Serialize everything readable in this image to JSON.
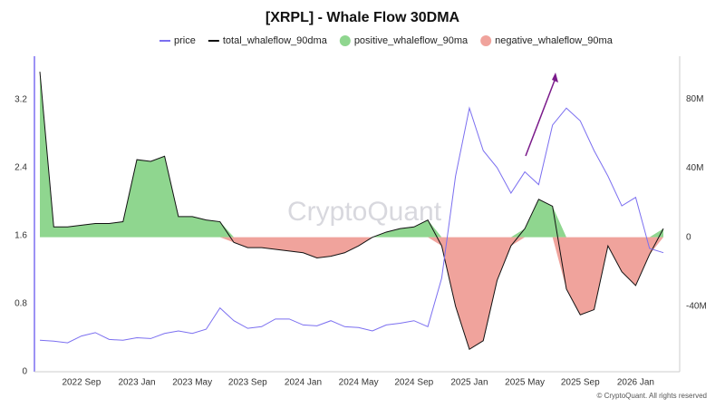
{
  "chart_data": {
    "type": "line",
    "title": "[XRPL] - Whale Flow 30DMA",
    "watermark": "CryptoQuant",
    "credit": "© CryptoQuant. All rights reserved",
    "x": [
      "2022-06",
      "2022-07",
      "2022-08",
      "2022-09",
      "2022-10",
      "2022-11",
      "2022-12",
      "2023-01",
      "2023-02",
      "2023-03",
      "2023-04",
      "2023-05",
      "2023-06",
      "2023-07",
      "2023-08",
      "2023-09",
      "2023-10",
      "2023-11",
      "2023-12",
      "2024-01",
      "2024-02",
      "2024-03",
      "2024-04",
      "2024-05",
      "2024-06",
      "2024-07",
      "2024-08",
      "2024-09",
      "2024-10",
      "2024-11",
      "2024-12",
      "2025-01",
      "2025-02",
      "2025-03",
      "2025-04",
      "2025-05",
      "2025-06",
      "2025-07",
      "2025-08",
      "2025-09",
      "2025-10",
      "2025-11",
      "2025-12",
      "2026-01",
      "2026-02",
      "2026-03"
    ],
    "series": [
      {
        "name": "price",
        "color": "#7b6ff0",
        "axis": "y",
        "style": "line",
        "values": [
          0.37,
          0.36,
          0.34,
          0.42,
          0.46,
          0.38,
          0.37,
          0.4,
          0.39,
          0.45,
          0.48,
          0.45,
          0.5,
          0.75,
          0.6,
          0.51,
          0.53,
          0.62,
          0.62,
          0.55,
          0.54,
          0.6,
          0.53,
          0.52,
          0.48,
          0.55,
          0.57,
          0.6,
          0.53,
          1.1,
          2.3,
          3.1,
          2.6,
          2.4,
          2.1,
          2.35,
          2.2,
          2.9,
          3.1,
          2.95,
          2.6,
          2.3,
          1.95,
          2.05,
          1.45,
          1.4
        ]
      },
      {
        "name": "total_whaleflow_90dma",
        "color": "#111111",
        "axis": "y2",
        "style": "line",
        "values": [
          96,
          6,
          6,
          7,
          8,
          8,
          9,
          45,
          44,
          47,
          12,
          12,
          10,
          9,
          -3,
          -6,
          -6,
          -7,
          -8,
          -9,
          -12,
          -11,
          -9,
          -5,
          0,
          3,
          5,
          6,
          10,
          -5,
          -40,
          -65,
          -60,
          -25,
          -5,
          5,
          22,
          18,
          -30,
          -45,
          -42,
          -5,
          -20,
          -28,
          -10,
          5
        ]
      },
      {
        "name": "positive_whaleflow_90ma",
        "color": "#8fd68f",
        "axis": "y2",
        "style": "area",
        "values": [
          96,
          6,
          6,
          7,
          8,
          8,
          9,
          45,
          44,
          47,
          12,
          12,
          10,
          9,
          0,
          0,
          0,
          0,
          0,
          0,
          0,
          0,
          0,
          0,
          0,
          3,
          5,
          6,
          10,
          0,
          0,
          0,
          0,
          0,
          0,
          5,
          22,
          18,
          0,
          0,
          0,
          0,
          0,
          0,
          0,
          5
        ]
      },
      {
        "name": "negative_whaleflow_90ma",
        "color": "#f0a39c",
        "axis": "y2",
        "style": "area",
        "values": [
          0,
          0,
          0,
          0,
          0,
          0,
          0,
          0,
          0,
          0,
          0,
          0,
          0,
          0,
          -3,
          -6,
          -6,
          -7,
          -8,
          -9,
          -12,
          -11,
          -9,
          -5,
          0,
          0,
          0,
          0,
          0,
          -5,
          -40,
          -65,
          -60,
          -25,
          -5,
          0,
          0,
          0,
          -30,
          -45,
          -42,
          -5,
          -20,
          -28,
          -10,
          0
        ]
      }
    ],
    "xlim": [
      "2022-06",
      "2026-03"
    ],
    "xticks": [
      {
        "value": "2022-09",
        "label": "2022 Sep"
      },
      {
        "value": "2023-01",
        "label": "2023 Jan"
      },
      {
        "value": "2023-05",
        "label": "2023 May"
      },
      {
        "value": "2023-09",
        "label": "2023 Sep"
      },
      {
        "value": "2024-01",
        "label": "2024 Jan"
      },
      {
        "value": "2024-05",
        "label": "2024 May"
      },
      {
        "value": "2024-09",
        "label": "2024 Sep"
      },
      {
        "value": "2025-01",
        "label": "2025 Jan"
      },
      {
        "value": "2025-05",
        "label": "2025 May"
      },
      {
        "value": "2025-09",
        "label": "2025 Sep"
      },
      {
        "value": "2026-01",
        "label": "2026 Jan"
      }
    ],
    "ylim": [
      0,
      3.71
    ],
    "yticks": [
      0,
      0.8,
      1.6,
      2.4,
      3.2
    ],
    "y2lim": [
      -78,
      105
    ],
    "y2ticks": [
      {
        "value": 80,
        "label": "80M"
      },
      {
        "value": 40,
        "label": "40M"
      },
      0,
      {
        "value": -40,
        "label": "-40M"
      }
    ]
  }
}
